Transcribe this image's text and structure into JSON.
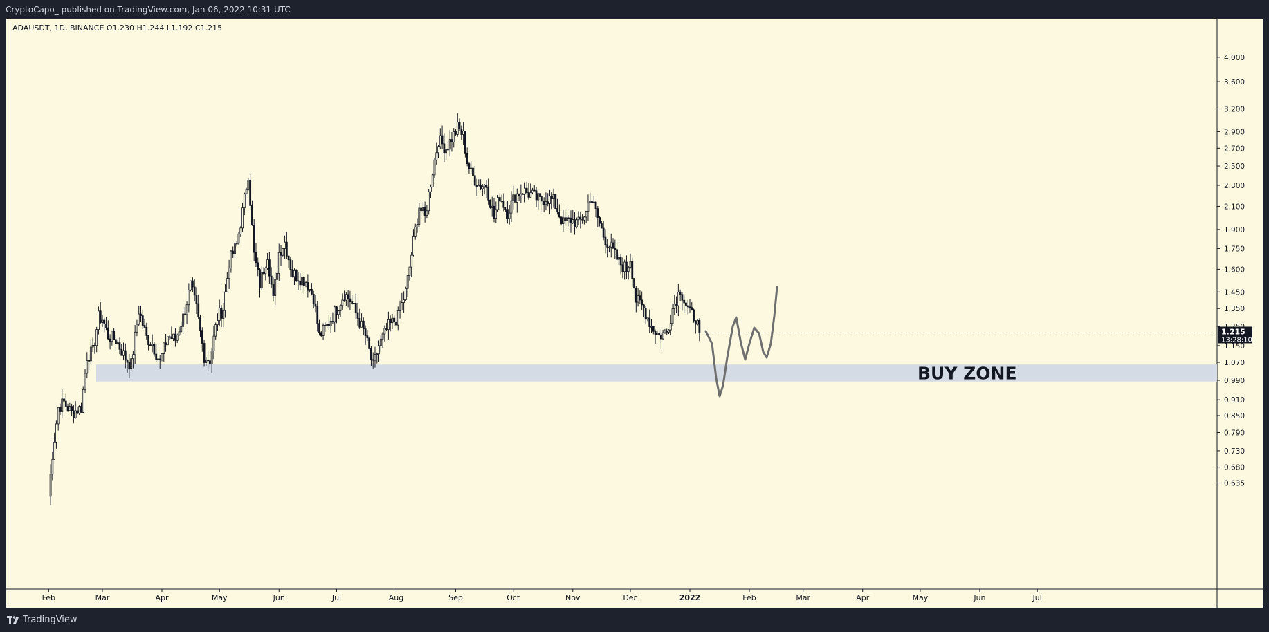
{
  "header": {
    "publisher_line": "CryptoCapo_ published on TradingView.com, Jan 06, 2022 10:31 UTC"
  },
  "footer": {
    "brand": "TradingView"
  },
  "colors": {
    "background": "#fdf9e1",
    "candle": "#131722",
    "buy_zone": "#d5dbe5",
    "drawing": "#6f6f6f",
    "price_tag": "#131722"
  },
  "chart_data": {
    "type": "candlestick",
    "symbol_line": "ADAUSDT, 1D, BINANCE  O1.230  H1.244  L1.192  C1.215",
    "y_scale": "log",
    "ylim": [
      0.6,
      4.2
    ],
    "y_ticks": [
      "4.000",
      "3.600",
      "3.200",
      "2.900",
      "2.700",
      "2.500",
      "2.300",
      "2.100",
      "1.900",
      "1.750",
      "1.600",
      "1.450",
      "1.350",
      "1.250",
      "1.150",
      "1.070",
      "0.990",
      "0.910",
      "0.850",
      "0.790",
      "0.730",
      "0.680",
      "0.635"
    ],
    "x_ticks": [
      "Feb",
      "Mar",
      "Apr",
      "May",
      "Jun",
      "Jul",
      "Aug",
      "Sep",
      "Oct",
      "Nov",
      "Dec",
      "2022",
      "Feb",
      "Mar",
      "Apr",
      "May",
      "Jun",
      "Jul"
    ],
    "last_price": "1.215",
    "countdown": "13:28:10",
    "annotations": {
      "buy_zone": {
        "label": "BUY ZONE",
        "low": 0.985,
        "high": 1.06
      }
    },
    "anchors": [
      [
        "2021-02-01",
        0.6
      ],
      [
        "2021-02-03",
        0.72
      ],
      [
        "2021-02-06",
        0.88
      ],
      [
        "2021-02-09",
        0.9
      ],
      [
        "2021-02-13",
        0.86
      ],
      [
        "2021-02-18",
        0.88
      ],
      [
        "2021-02-21",
        1.1
      ],
      [
        "2021-02-24",
        1.12
      ],
      [
        "2021-02-27",
        1.3
      ],
      [
        "2021-03-01",
        1.29
      ],
      [
        "2021-03-04",
        1.2
      ],
      [
        "2021-03-08",
        1.18
      ],
      [
        "2021-03-13",
        1.09
      ],
      [
        "2021-03-16",
        1.06
      ],
      [
        "2021-03-20",
        1.34
      ],
      [
        "2021-03-24",
        1.19
      ],
      [
        "2021-03-27",
        1.16
      ],
      [
        "2021-03-31",
        1.07
      ],
      [
        "2021-04-04",
        1.2
      ],
      [
        "2021-04-08",
        1.18
      ],
      [
        "2021-04-12",
        1.3
      ],
      [
        "2021-04-16",
        1.49
      ],
      [
        "2021-04-19",
        1.35
      ],
      [
        "2021-04-23",
        1.1
      ],
      [
        "2021-04-26",
        1.08
      ],
      [
        "2021-04-30",
        1.3
      ],
      [
        "2021-05-03",
        1.35
      ],
      [
        "2021-05-06",
        1.65
      ],
      [
        "2021-05-10",
        1.78
      ],
      [
        "2021-05-13",
        2.05
      ],
      [
        "2021-05-16",
        2.42
      ],
      [
        "2021-05-19",
        1.7
      ],
      [
        "2021-05-22",
        1.5
      ],
      [
        "2021-05-26",
        1.71
      ],
      [
        "2021-05-29",
        1.4
      ],
      [
        "2021-06-01",
        1.72
      ],
      [
        "2021-06-04",
        1.8
      ],
      [
        "2021-06-08",
        1.57
      ],
      [
        "2021-06-11",
        1.55
      ],
      [
        "2021-06-15",
        1.52
      ],
      [
        "2021-06-19",
        1.42
      ],
      [
        "2021-06-22",
        1.2
      ],
      [
        "2021-06-26",
        1.25
      ],
      [
        "2021-07-01",
        1.35
      ],
      [
        "2021-07-05",
        1.44
      ],
      [
        "2021-07-08",
        1.4
      ],
      [
        "2021-07-12",
        1.3
      ],
      [
        "2021-07-16",
        1.2
      ],
      [
        "2021-07-20",
        1.05
      ],
      [
        "2021-07-23",
        1.15
      ],
      [
        "2021-07-28",
        1.25
      ],
      [
        "2021-08-02",
        1.3
      ],
      [
        "2021-08-06",
        1.45
      ],
      [
        "2021-08-10",
        1.8
      ],
      [
        "2021-08-13",
        2.1
      ],
      [
        "2021-08-16",
        2.0
      ],
      [
        "2021-08-20",
        2.45
      ],
      [
        "2021-08-23",
        2.8
      ],
      [
        "2021-08-27",
        2.7
      ],
      [
        "2021-09-01",
        2.9
      ],
      [
        "2021-09-02",
        2.95
      ],
      [
        "2021-09-05",
        2.85
      ],
      [
        "2021-09-07",
        2.55
      ],
      [
        "2021-09-09",
        2.42
      ],
      [
        "2021-09-13",
        2.3
      ],
      [
        "2021-09-17",
        2.3
      ],
      [
        "2021-09-21",
        2.0
      ],
      [
        "2021-09-24",
        2.2
      ],
      [
        "2021-09-28",
        2.05
      ],
      [
        "2021-10-02",
        2.2
      ],
      [
        "2021-10-06",
        2.25
      ],
      [
        "2021-10-11",
        2.2
      ],
      [
        "2021-10-15",
        2.15
      ],
      [
        "2021-10-18",
        2.18
      ],
      [
        "2021-10-22",
        2.15
      ],
      [
        "2021-10-27",
        1.95
      ],
      [
        "2021-10-31",
        1.98
      ],
      [
        "2021-11-04",
        1.95
      ],
      [
        "2021-11-08",
        2.05
      ],
      [
        "2021-11-10",
        2.2
      ],
      [
        "2021-11-13",
        2.05
      ],
      [
        "2021-11-17",
        1.85
      ],
      [
        "2021-11-21",
        1.75
      ],
      [
        "2021-11-25",
        1.65
      ],
      [
        "2021-11-29",
        1.6
      ],
      [
        "2021-12-01",
        1.68
      ],
      [
        "2021-12-04",
        1.4
      ],
      [
        "2021-12-08",
        1.35
      ],
      [
        "2021-12-12",
        1.25
      ],
      [
        "2021-12-16",
        1.2
      ],
      [
        "2021-12-20",
        1.22
      ],
      [
        "2021-12-23",
        1.35
      ],
      [
        "2021-12-27",
        1.47
      ],
      [
        "2021-12-29",
        1.4
      ],
      [
        "2022-01-01",
        1.32
      ],
      [
        "2022-01-04",
        1.3
      ],
      [
        "2022-01-06",
        1.215
      ]
    ]
  }
}
